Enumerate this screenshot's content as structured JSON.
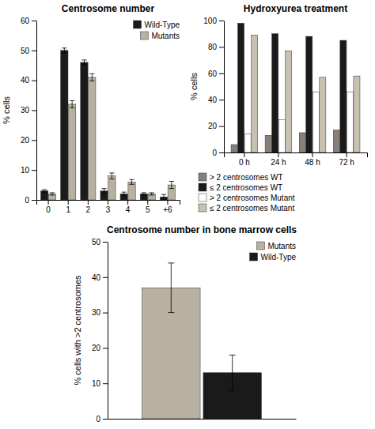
{
  "chart_data": [
    {
      "type": "bar",
      "title": "Centrosome number",
      "ylabel": "% cells",
      "categories": [
        "0",
        "1",
        "2",
        "3",
        "4",
        "5",
        "+6"
      ],
      "series": [
        {
          "name": "Wild-Type",
          "color": "#1a1a1a",
          "values": [
            3,
            50,
            46,
            3,
            2,
            2,
            1
          ],
          "errors": [
            0.4,
            0.8,
            0.8,
            0.8,
            0.6,
            0.4,
            0.8
          ]
        },
        {
          "name": "Mutants",
          "color": "#b8b0a0",
          "values": [
            2,
            32,
            41,
            8,
            6,
            2,
            5
          ],
          "errors": [
            0.4,
            1.2,
            1.2,
            1.0,
            0.8,
            0.4,
            1.2
          ]
        }
      ],
      "ylim": [
        0,
        60
      ],
      "yticks": [
        0,
        10,
        20,
        30,
        40,
        50,
        60
      ],
      "legend": "upper right"
    },
    {
      "type": "bar",
      "title": "Hydroxyurea treatment",
      "ylabel": "% cells",
      "categories": [
        "0 h",
        "24 h",
        "48 h",
        "72 h"
      ],
      "series": [
        {
          "name": "> 2 centrosomes WT",
          "color": "#888078",
          "values": [
            6,
            13,
            15,
            17
          ]
        },
        {
          "name": "≤ 2 centrosomes WT",
          "color": "#1a1a1a",
          "values": [
            98,
            90,
            88,
            85
          ]
        },
        {
          "name": "> 2 centrosomes Mutant",
          "color": "#ffffff",
          "values": [
            14,
            25,
            46,
            46
          ]
        },
        {
          "name": "≤ 2 centrosomes Mutant",
          "color": "#c8c0b0",
          "values": [
            89,
            77,
            57,
            58
          ]
        }
      ],
      "ylim": [
        0,
        100
      ],
      "yticks": [
        0,
        20,
        40,
        60,
        80,
        100
      ],
      "legend": "bottom"
    },
    {
      "type": "bar",
      "title": "Centrosome number in bone marrow cells",
      "ylabel": "% cells with >2 centrosomes",
      "categories": [
        null
      ],
      "series": [
        {
          "name": "Mutants",
          "color": "#b8b0a0",
          "values": [
            37
          ],
          "errors": [
            7
          ]
        },
        {
          "name": "Wild-Type",
          "color": "#1a1a1a",
          "values": [
            13
          ],
          "errors": [
            5
          ]
        }
      ],
      "ylim": [
        0,
        50
      ],
      "yticks": [
        0,
        10,
        20,
        30,
        40,
        50
      ],
      "legend": "upper right",
      "tick_labels": "y"
    }
  ]
}
